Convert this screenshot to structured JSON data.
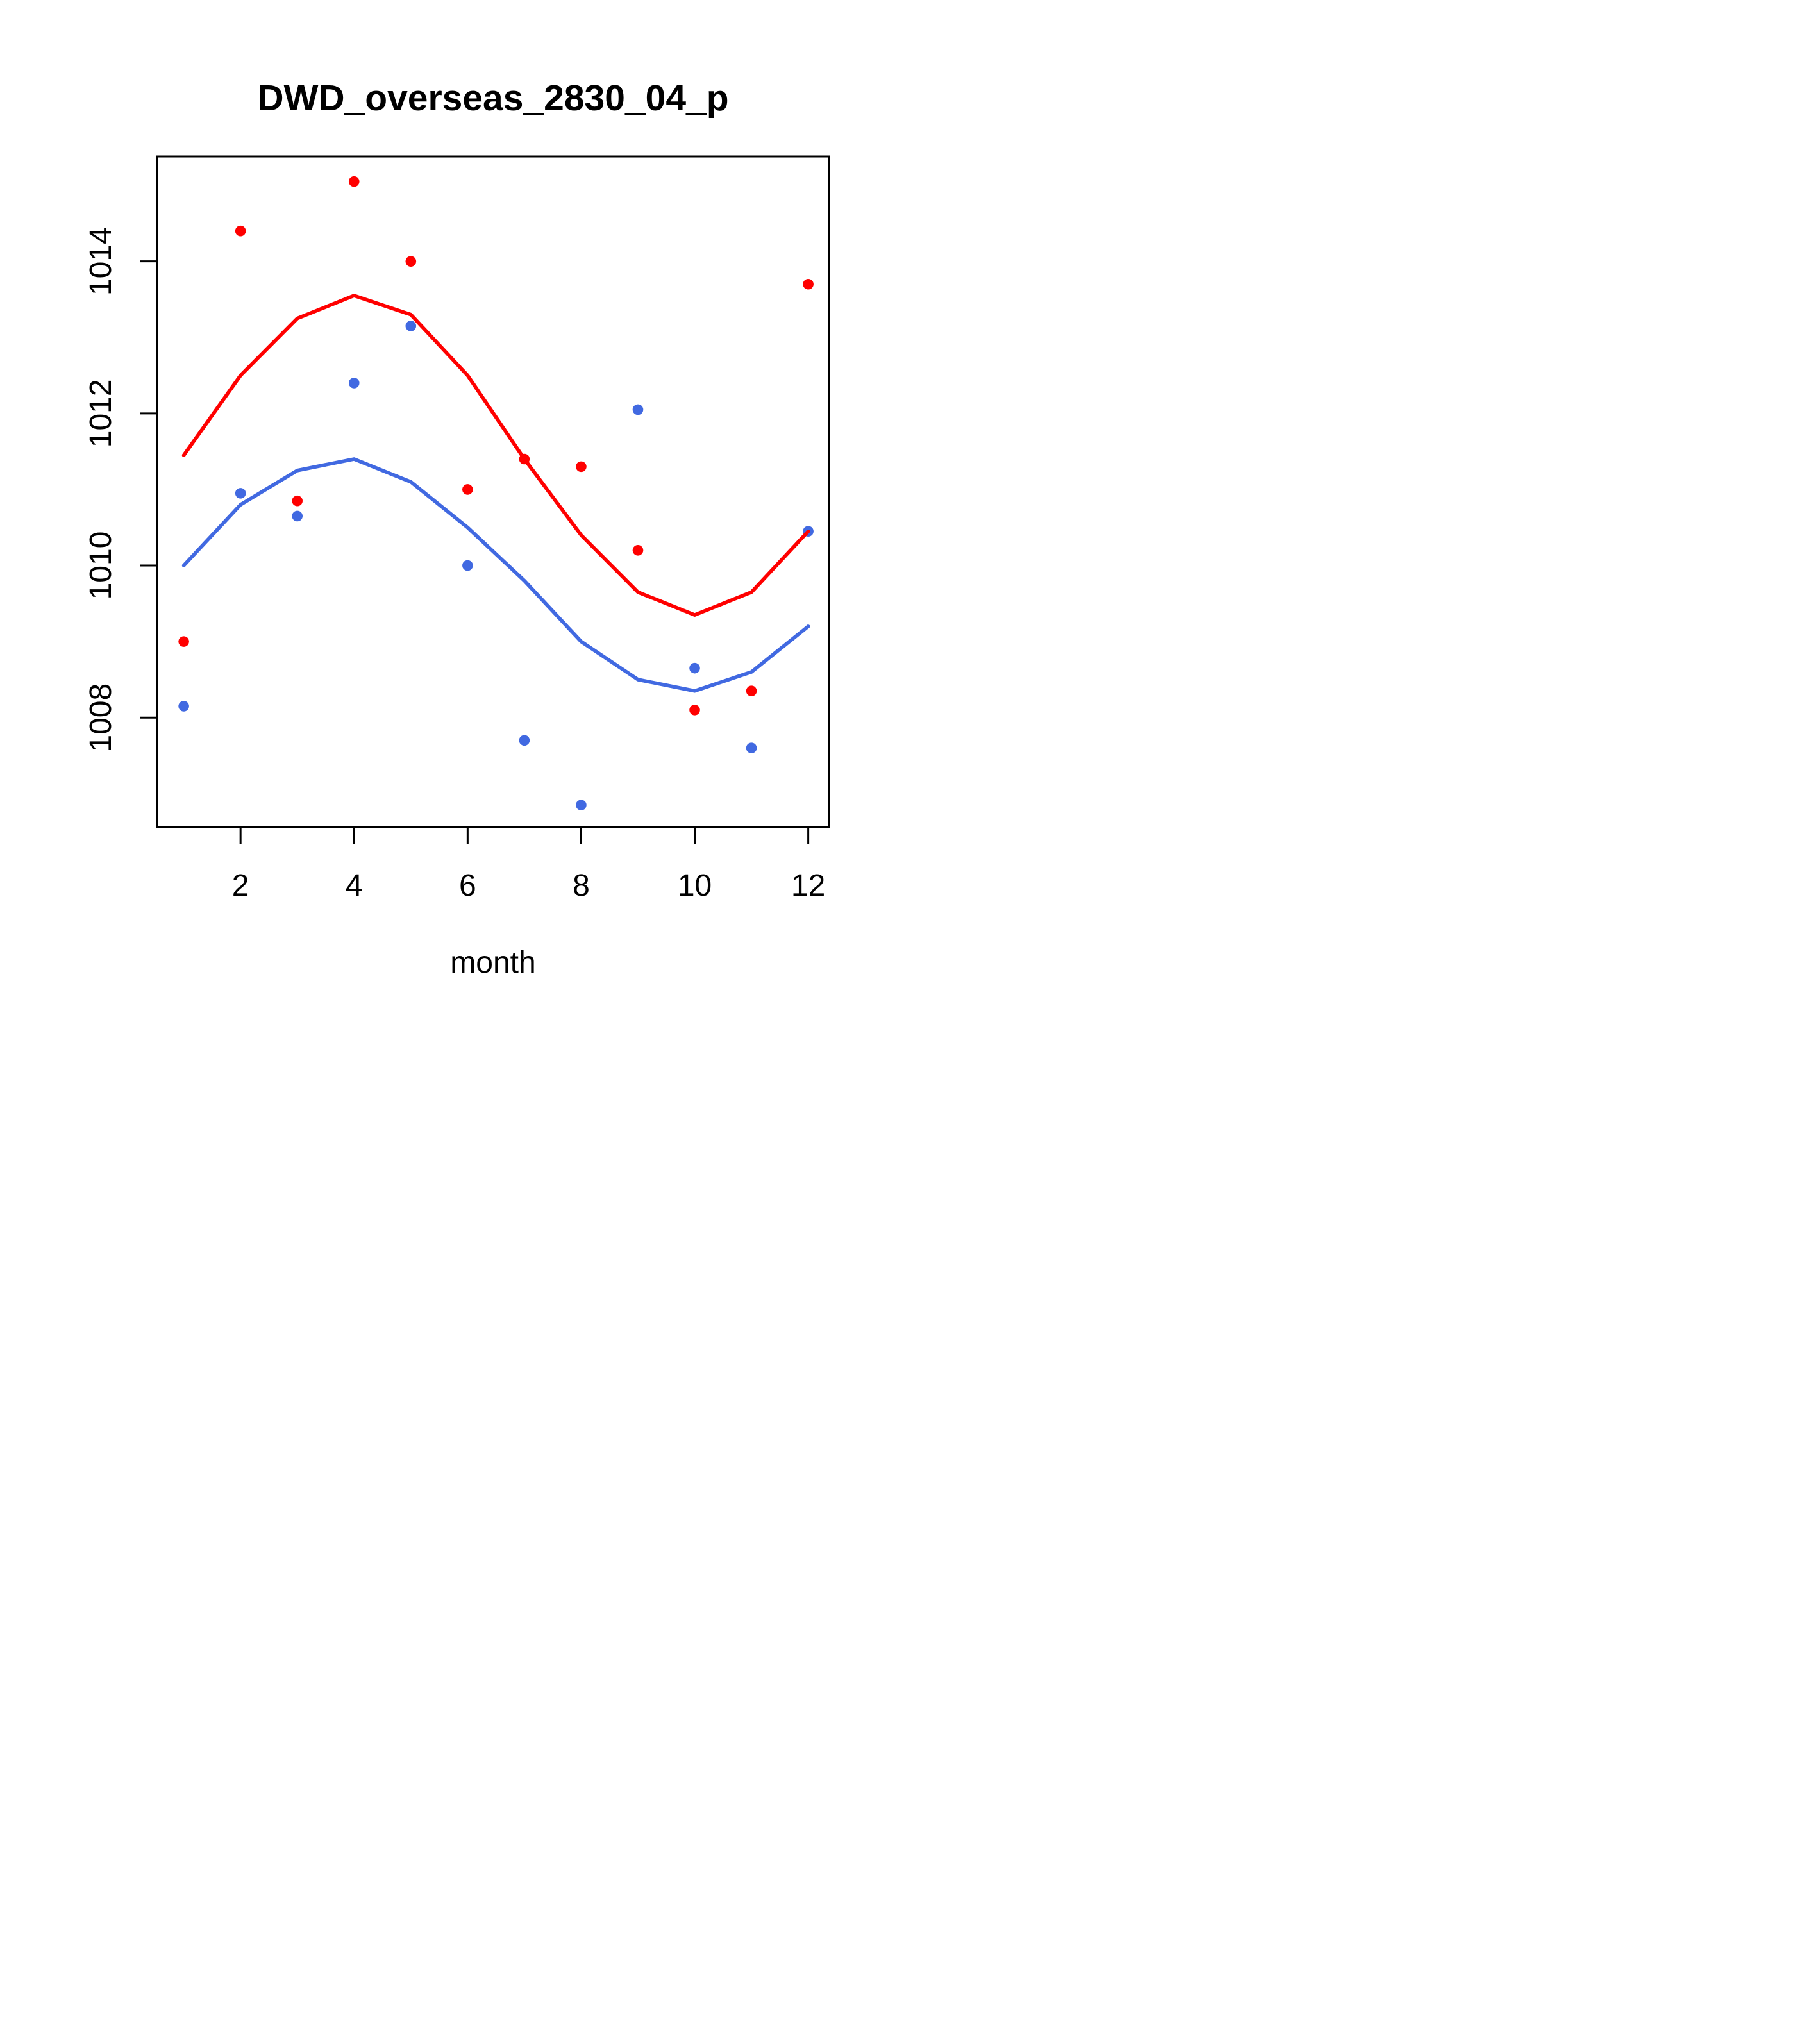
{
  "chart_data": {
    "type": "scatter",
    "title": "DWD_overseas_2830_04_p",
    "xlabel": "month",
    "ylabel": "",
    "x_ticks": [
      2,
      4,
      6,
      8,
      10,
      12
    ],
    "y_ticks": [
      1008,
      1010,
      1012,
      1014
    ],
    "xlim": [
      0.53,
      12.36
    ],
    "ylim": [
      1006.56,
      1015.38
    ],
    "grid": false,
    "legend": "none",
    "frame_color": "#000000",
    "background": "#ffffff",
    "x": [
      1,
      2,
      3,
      4,
      5,
      6,
      7,
      8,
      9,
      10,
      11,
      12
    ],
    "series": [
      {
        "name": "red-points",
        "kind": "scatter",
        "color": "#FF0000",
        "values": [
          1009.0,
          1014.4,
          1010.85,
          1015.05,
          1014.0,
          1011.0,
          1011.4,
          1011.3,
          1010.2,
          1008.1,
          1008.35,
          1013.7
        ]
      },
      {
        "name": "blue-points",
        "kind": "scatter",
        "color": "#4169E1",
        "values": [
          1008.15,
          1010.95,
          1010.65,
          1012.4,
          1013.15,
          1010.0,
          1007.7,
          1006.85,
          1012.05,
          1008.65,
          1007.6,
          1010.45
        ]
      },
      {
        "name": "red-smooth-line",
        "kind": "line",
        "color": "#FF0000",
        "values": [
          1011.45,
          1012.5,
          1013.25,
          1013.55,
          1013.3,
          1012.5,
          1011.4,
          1010.4,
          1009.65,
          1009.35,
          1009.65,
          1010.45
        ]
      },
      {
        "name": "blue-smooth-line",
        "kind": "line",
        "color": "#4169E1",
        "values": [
          1010.0,
          1010.8,
          1011.25,
          1011.4,
          1011.1,
          1010.5,
          1009.8,
          1009.0,
          1008.5,
          1008.35,
          1008.6,
          1009.2
        ]
      }
    ]
  }
}
